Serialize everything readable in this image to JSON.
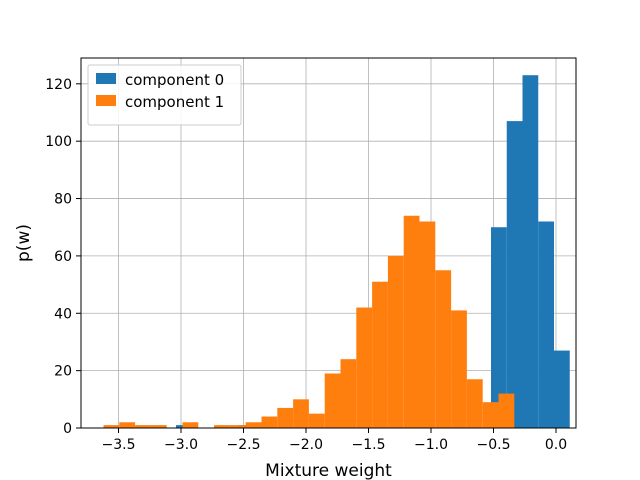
{
  "chart_data": {
    "type": "histogram",
    "title": "",
    "xlabel": "Mixture weight",
    "ylabel": "p(w)",
    "xlim": [
      -3.8,
      0.16
    ],
    "ylim": [
      0,
      129
    ],
    "xticks": [
      -3.5,
      -3.0,
      -2.5,
      -2.0,
      -1.5,
      -1.0,
      -0.5,
      0.0
    ],
    "xtick_labels": [
      "−3.5",
      "−3.0",
      "−2.5",
      "−2.0",
      "−1.5",
      "−1.0",
      "−0.5",
      "0.0"
    ],
    "yticks": [
      0,
      20,
      40,
      60,
      80,
      100,
      120
    ],
    "ytick_labels": [
      "0",
      "20",
      "40",
      "60",
      "80",
      "100",
      "120"
    ],
    "grid": true,
    "legend_position": "top-left",
    "series": [
      {
        "name": "component 0",
        "color": "#1f77b4",
        "bin_start": -3.04,
        "bin_width": 0.126,
        "counts": [
          1,
          0,
          0,
          0,
          1,
          1,
          0,
          0,
          0,
          0,
          0,
          0,
          0,
          0,
          0,
          0,
          0,
          0,
          0,
          0,
          70,
          107,
          123,
          72,
          27
        ]
      },
      {
        "name": "component 1",
        "color": "#ff7f0e",
        "bin_start": -3.62,
        "bin_width": 0.1264,
        "counts": [
          1,
          2,
          1,
          1,
          0,
          2,
          0,
          1,
          1,
          2,
          4,
          7,
          10,
          5,
          19,
          24,
          42,
          51,
          60,
          74,
          72,
          55,
          41,
          17,
          9,
          12
        ]
      }
    ]
  }
}
